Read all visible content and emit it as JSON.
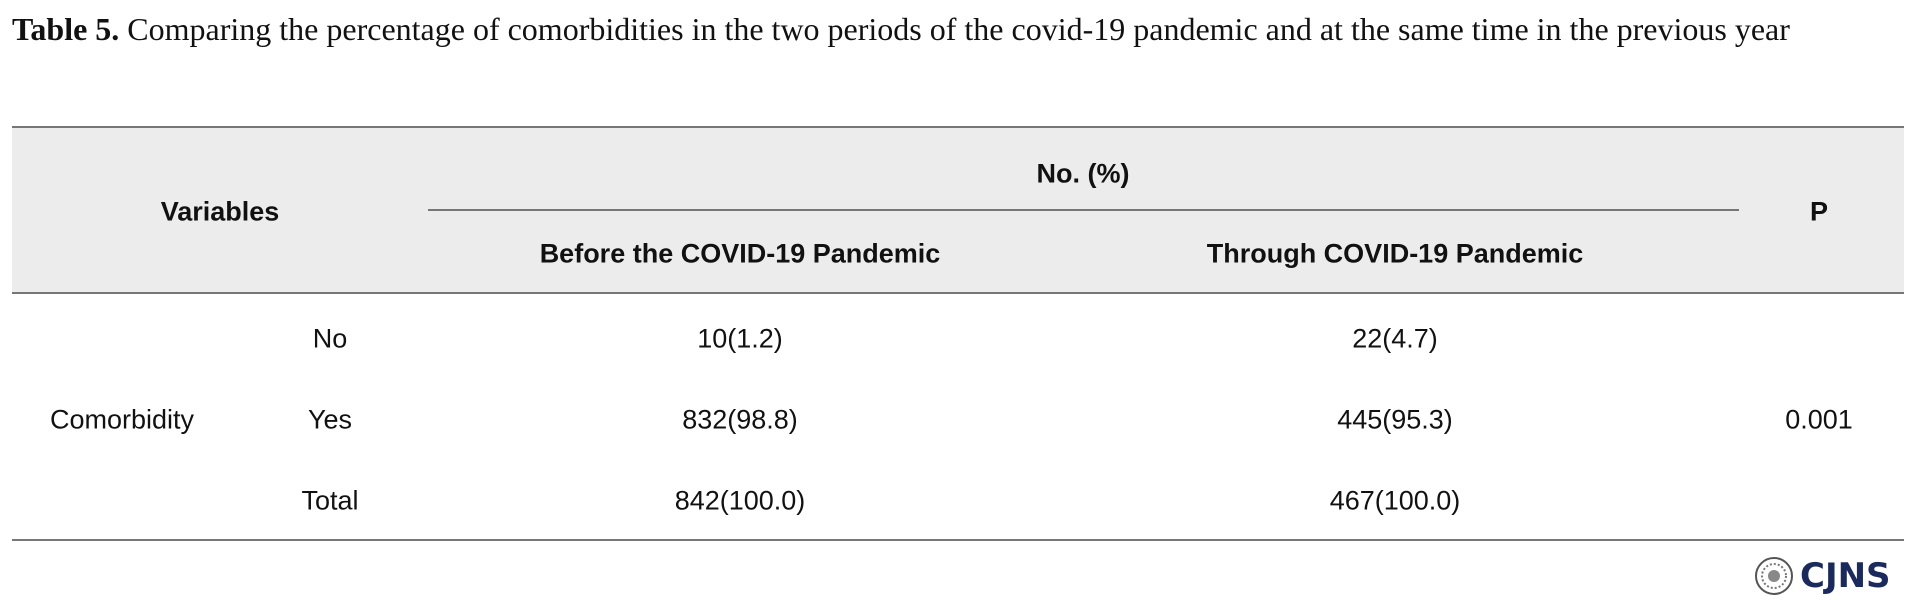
{
  "caption": {
    "label": "Table 5.",
    "text": "Comparing the percentage of comorbidities in the two periods of the covid-19 pandemic and at the same time in the previous year"
  },
  "table": {
    "header": {
      "variables": "Variables",
      "group": "No. (%)",
      "columns": [
        "Before the COVID-19 Pandemic",
        "Through COVID-19 Pandemic"
      ],
      "p": "P"
    },
    "row": {
      "variable": "Comorbidity",
      "p": "0.001",
      "levels": [
        [
          "No",
          "10(1.2)",
          "22(4.7)"
        ],
        [
          "Yes",
          "832(98.8)",
          "445(95.3)"
        ],
        [
          "Total",
          "842(100.0)",
          "467(100.0)"
        ]
      ]
    }
  },
  "logo": "CJNS"
}
